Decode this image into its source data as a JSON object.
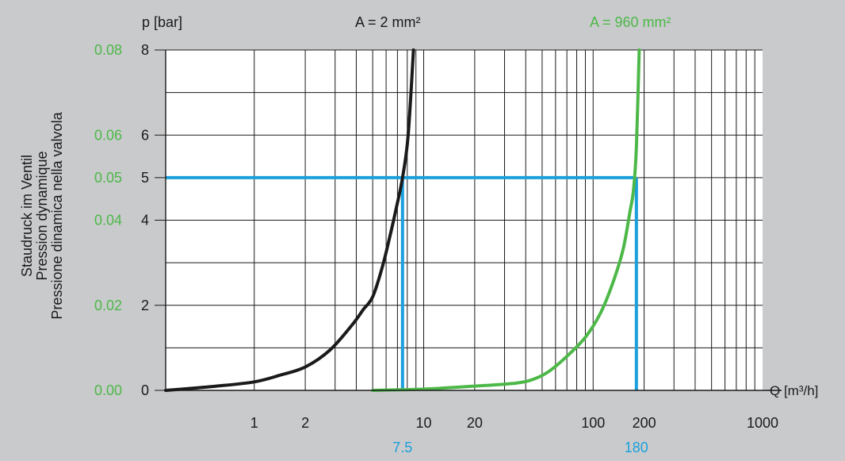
{
  "chart_data": {
    "type": "line",
    "title": "",
    "xlabel": "Q [m³/h]",
    "ylabel": "p [bar]",
    "ylabel_vertical": [
      "Staudruck im Ventil",
      "Pression dynamique",
      "Pressione dinamica nella valvola"
    ],
    "x_scale": "log",
    "xlim": [
      0.3,
      1000
    ],
    "ylim": [
      0,
      8
    ],
    "x_ticks": [
      1,
      2,
      10,
      20,
      100,
      200,
      1000
    ],
    "x_tick_labels": [
      "1",
      "2",
      "10",
      "20",
      "100",
      "200",
      "1000"
    ],
    "y_ticks": [
      0,
      2,
      4,
      5,
      6,
      8
    ],
    "y_tick_labels": [
      "0",
      "2",
      "4",
      "5",
      "6",
      "8"
    ],
    "y2_ticks": [
      0,
      2,
      4,
      5,
      6,
      8
    ],
    "y2_tick_labels": [
      "0.00",
      "0.02",
      "0.04",
      "0.05",
      "0.06",
      "0.08"
    ],
    "grid": true,
    "series": [
      {
        "name": "A = 2 mm²",
        "color": "#1a1a1a",
        "x": [
          0.3,
          0.6,
          1.0,
          1.4,
          2.0,
          2.8,
          3.8,
          4.4,
          5.0,
          5.7,
          6.3,
          6.9,
          7.5,
          8.1,
          8.7
        ],
        "y": [
          0.0,
          0.1,
          0.2,
          0.35,
          0.55,
          0.95,
          1.55,
          1.9,
          2.2,
          2.9,
          3.6,
          4.3,
          5.0,
          6.0,
          8.0
        ]
      },
      {
        "name": "A = 960 mm²",
        "color": "#4db848",
        "x": [
          5.0,
          10,
          20,
          35,
          45,
          55,
          70,
          90,
          110,
          130,
          150,
          165,
          173,
          180,
          187
        ],
        "y": [
          0.0,
          0.03,
          0.1,
          0.17,
          0.27,
          0.45,
          0.8,
          1.25,
          1.8,
          2.5,
          3.3,
          4.2,
          4.7,
          5.7,
          8.0
        ]
      }
    ],
    "reference_lines": {
      "color": "#1aa0dc",
      "pressure": 5,
      "flows": [
        7.5,
        180
      ],
      "flow_labels": [
        "7.5",
        "180"
      ]
    },
    "colors": {
      "background": "#c9cacc",
      "plot_area": "#ffffff",
      "left_axis_green": "#4db848",
      "reference_blue": "#1aa0dc"
    }
  }
}
